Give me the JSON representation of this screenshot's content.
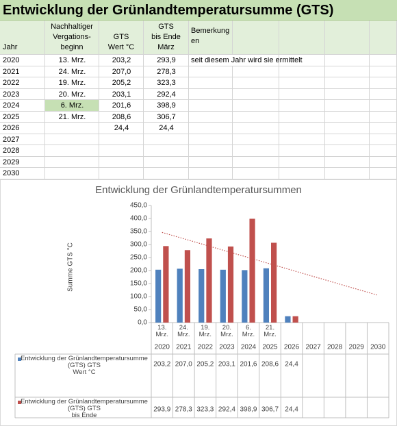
{
  "sheet": {
    "title": "Entwicklung der Grünlandtemperatursumme  (GTS)",
    "headers": [
      "Jahr",
      "Nachhaltiger\nVergations-\nbeginn",
      "GTS\nWert °C",
      "GTS\nbis Ende\nMärz",
      "Bemerkung\n   en"
    ],
    "rows": [
      [
        "2020",
        "13. Mrz.",
        "203,2",
        "293,9",
        "seit diesem Jahr wird sie ermittelt"
      ],
      [
        "2021",
        "24. Mrz.",
        "207,0",
        "278,3",
        null
      ],
      [
        "2022",
        "19. Mrz.",
        "205,2",
        "323,3",
        null
      ],
      [
        "2023",
        "20. Mrz.",
        "203,1",
        "292,4",
        null
      ],
      [
        "2024",
        "6. Mrz.",
        "201,6",
        "398,9",
        null
      ],
      [
        "2025",
        "21. Mrz.",
        "208,6",
        "306,7",
        null
      ],
      [
        "2026",
        null,
        "24,4",
        "24,4",
        null
      ],
      [
        "2027",
        null,
        null,
        null,
        null
      ],
      [
        "2028",
        null,
        null,
        null,
        null
      ],
      [
        "2029",
        null,
        null,
        null,
        null
      ],
      [
        "2030",
        null,
        null,
        null,
        null
      ]
    ]
  },
  "chart_data": {
    "type": "bar",
    "title": "Entwicklung der Grünlandtemperatursummen",
    "y_label": "Summe  GTS °C",
    "categories": [
      "2020",
      "2021",
      "2022",
      "2023",
      "2024",
      "2025",
      "2026",
      "2027",
      "2028",
      "2029",
      "2030"
    ],
    "sub_categories": [
      "13.\nMrz.",
      "24.\nMrz.",
      "19.\nMrz.",
      "20.\nMrz.",
      "6.\nMrz.",
      "21.\nMrz.",
      null,
      null,
      null,
      null,
      null
    ],
    "series": [
      {
        "name": "Entwicklung der Grünlandtemperatursumme\n(GTS) GTS\nWert °C",
        "color": "#4f81bd",
        "values": [
          203.2,
          207.0,
          205.2,
          203.1,
          201.6,
          208.6,
          24.4,
          null,
          null,
          null,
          null
        ],
        "value_labels": [
          "203,2",
          "207,0",
          "205,2",
          "203,1",
          "201,6",
          "208,6",
          "24,4",
          null,
          null,
          null,
          null
        ]
      },
      {
        "name": "Entwicklung der Grünlandtemperatursumme\n(GTS) GTS\nbis Ende\nMärz",
        "color": "#c0504d",
        "values": [
          293.9,
          278.3,
          323.3,
          292.4,
          398.9,
          306.7,
          24.4,
          null,
          null,
          null,
          null
        ],
        "value_labels": [
          "293,9",
          "278,3",
          "323,3",
          "292,4",
          "398,9",
          "306,7",
          "24,4",
          null,
          null,
          null,
          null
        ],
        "trendline": "linear"
      }
    ],
    "ylim": [
      0,
      450
    ],
    "yticks": [
      {
        "value": 0,
        "label": "0,0"
      },
      {
        "value": 50,
        "label": "50,0"
      },
      {
        "value": 100,
        "label": "100,0"
      },
      {
        "value": 150,
        "label": "150,0"
      },
      {
        "value": 200,
        "label": "200,0"
      },
      {
        "value": 250,
        "label": "250,0"
      },
      {
        "value": 300,
        "label": "300,0"
      },
      {
        "value": 350,
        "label": "350,0"
      },
      {
        "value": 400,
        "label": "400,0"
      },
      {
        "value": 450,
        "label": "450,0"
      }
    ],
    "grid": false
  }
}
